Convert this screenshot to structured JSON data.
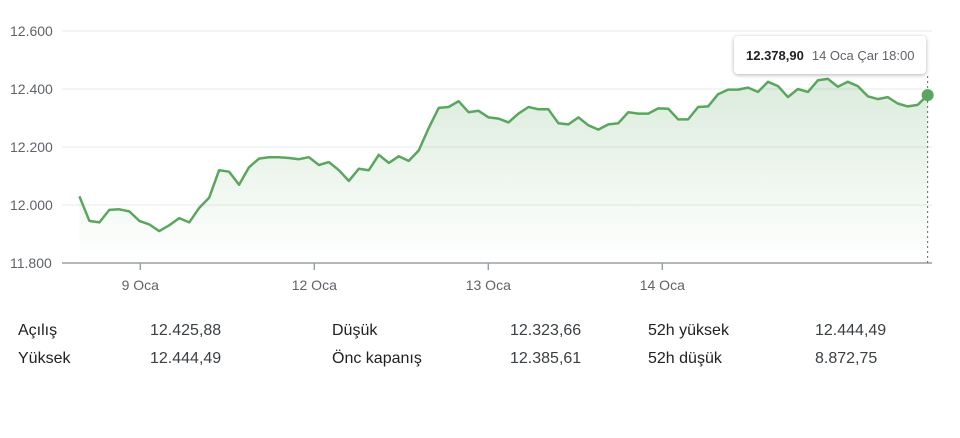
{
  "chart_data": {
    "type": "area",
    "y_ticks": [
      "12.600",
      "12.400",
      "12.200",
      "12.000",
      "11.800"
    ],
    "y_tick_values": [
      12600,
      12400,
      12200,
      12000,
      11800
    ],
    "ylim": [
      11800,
      12600
    ],
    "x_ticks": [
      "9 Oca",
      "12 Oca",
      "13 Oca",
      "14 Oca"
    ],
    "x_tick_positions": [
      9,
      29,
      49,
      69
    ],
    "xlim": [
      0,
      100
    ],
    "line_color": "#5aa65e",
    "fill_color": "#e6f4e6",
    "values": [
      12030,
      11945,
      11940,
      11983,
      11985,
      11978,
      11945,
      11933,
      11910,
      11930,
      11955,
      11940,
      11990,
      12025,
      12120,
      12115,
      12070,
      12130,
      12160,
      12165,
      12165,
      12162,
      12158,
      12165,
      12138,
      12148,
      12120,
      12083,
      12125,
      12120,
      12173,
      12145,
      12168,
      12152,
      12188,
      12265,
      12335,
      12338,
      12358,
      12320,
      12325,
      12302,
      12298,
      12285,
      12315,
      12338,
      12330,
      12330,
      12282,
      12278,
      12302,
      12275,
      12260,
      12278,
      12282,
      12320,
      12315,
      12315,
      12333,
      12332,
      12295,
      12295,
      12338,
      12340,
      12382,
      12398,
      12398,
      12405,
      12390,
      12425,
      12410,
      12372,
      12400,
      12390,
      12430,
      12435,
      12408,
      12425,
      12410,
      12375,
      12365,
      12372,
      12350,
      12340,
      12345,
      12378.9
    ],
    "tooltip": {
      "value": "12.378,90",
      "time": "14 Oca Çar 18:00"
    }
  },
  "stats": [
    {
      "label": "Açılış",
      "value": "12.425,88"
    },
    {
      "label": "Düşük",
      "value": "12.323,66"
    },
    {
      "label": "52h yüksek",
      "value": "12.444,49"
    },
    {
      "label": "Yüksek",
      "value": "12.444,49"
    },
    {
      "label": "Önc kapanış",
      "value": "12.385,61"
    },
    {
      "label": "52h düşük",
      "value": "8.872,75"
    }
  ]
}
